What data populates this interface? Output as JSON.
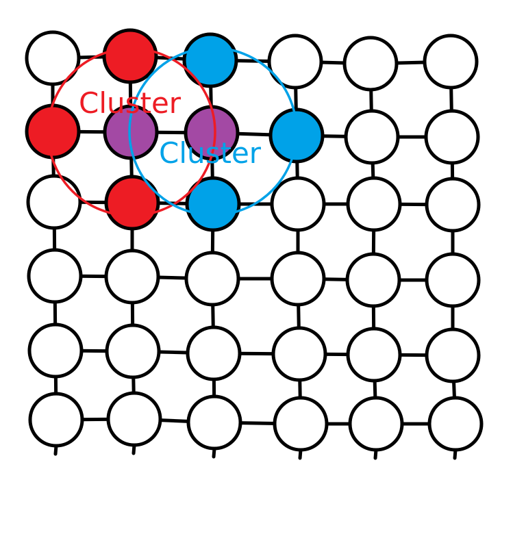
{
  "colors": {
    "background": "#ffffff",
    "node_default": "#ffffff",
    "node_outline": "#000000",
    "edge": "#000000",
    "red_cluster": "#ed1c24",
    "blue_cluster": "#00a2e8",
    "overlap": "#a349a4"
  },
  "grid": {
    "rows": 6,
    "columns": 6,
    "node_colors": [
      [
        "white",
        "red",
        "blue",
        "white",
        "white",
        "white"
      ],
      [
        "red",
        "overlap",
        "overlap",
        "blue",
        "white",
        "white"
      ],
      [
        "white",
        "red",
        "blue",
        "white",
        "white",
        "white"
      ],
      [
        "white",
        "white",
        "white",
        "white",
        "white",
        "white"
      ],
      [
        "white",
        "white",
        "white",
        "white",
        "white",
        "white"
      ],
      [
        "white",
        "white",
        "white",
        "white",
        "white",
        "white"
      ]
    ]
  },
  "clusters": [
    {
      "label": "Cluster",
      "color": "red",
      "center_node": [
        1,
        1
      ]
    },
    {
      "label": "Cluster",
      "color": "blue",
      "center_node": [
        1,
        2
      ]
    }
  ]
}
